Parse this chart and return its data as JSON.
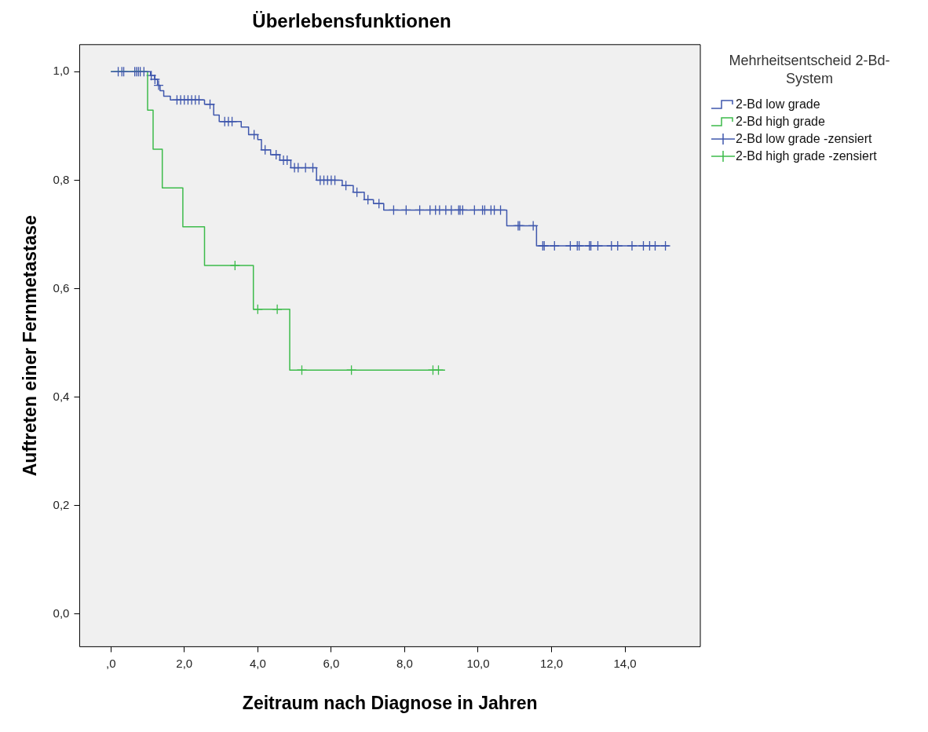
{
  "chart_data": {
    "type": "step",
    "title": "Überlebensfunktionen",
    "xlabel": "Zeitraum nach Diagnose in Jahren",
    "ylabel": "Auftreten einer Fernmetastase",
    "legend_title": "Mehrheitsentscheid 2-Bd-System",
    "legend": "top right",
    "grid": false,
    "xlim": [
      -0.85,
      16.05
    ],
    "ylim": [
      -0.06,
      1.05
    ],
    "xticks": [
      {
        "value": 0,
        "label": ",0"
      },
      {
        "value": 2,
        "label": "2,0"
      },
      {
        "value": 4,
        "label": "4,0"
      },
      {
        "value": 6,
        "label": "6,0"
      },
      {
        "value": 8,
        "label": "8,0"
      },
      {
        "value": 10,
        "label": "10,0"
      },
      {
        "value": 12,
        "label": "12,0"
      },
      {
        "value": 14,
        "label": "14,0"
      }
    ],
    "yticks": [
      {
        "value": 0,
        "label": "0,0"
      },
      {
        "value": 0.2,
        "label": "0,2"
      },
      {
        "value": 0.4,
        "label": "0,4"
      },
      {
        "value": 0.6,
        "label": "0,6"
      },
      {
        "value": 0.8,
        "label": "0,8"
      },
      {
        "value": 1,
        "label": "1,0"
      }
    ],
    "series": [
      {
        "name": "2-Bd low grade",
        "color": "#3f57ad",
        "x": [
          0,
          1.08,
          1.19,
          1.27,
          1.34,
          1.44,
          1.62,
          2.55,
          2.8,
          2.95,
          3.55,
          3.75,
          4.0,
          4.1,
          4.35,
          4.6,
          4.9,
          5.6,
          6.3,
          6.6,
          6.9,
          7.15,
          7.43,
          10.78,
          11.59,
          15.2
        ],
        "values": [
          1.0,
          0.993,
          0.986,
          0.975,
          0.965,
          0.955,
          0.948,
          0.94,
          0.92,
          0.908,
          0.898,
          0.884,
          0.875,
          0.856,
          0.847,
          0.837,
          0.823,
          0.8,
          0.79,
          0.778,
          0.764,
          0.757,
          0.745,
          0.716,
          0.679,
          0.679
        ]
      },
      {
        "name": "2-Bd high grade",
        "color": "#3dbb4b",
        "x": [
          0,
          1.0,
          1.15,
          1.4,
          1.96,
          2.55,
          3.88,
          4.87,
          9.1
        ],
        "values": [
          1.0,
          0.929,
          0.857,
          0.786,
          0.714,
          0.643,
          0.562,
          0.45,
          0.45
        ]
      },
      {
        "name": "2-Bd low grade -zensiert",
        "type": "scatter",
        "marker": "cross",
        "color": "#3f57ad",
        "x": [
          0.2,
          0.3,
          0.35,
          0.65,
          0.7,
          0.75,
          0.8,
          0.9,
          1.1,
          1.2,
          1.3,
          1.8,
          1.9,
          2.0,
          2.1,
          2.2,
          2.3,
          2.4,
          2.7,
          3.1,
          3.2,
          3.3,
          3.9,
          4.2,
          4.5,
          4.7,
          4.8,
          5.0,
          5.1,
          5.3,
          5.5,
          5.7,
          5.8,
          5.9,
          6.0,
          6.1,
          6.4,
          6.7,
          7.0,
          7.3,
          7.7,
          8.04,
          8.41,
          8.69,
          8.84,
          8.95,
          9.12,
          9.27,
          9.47,
          9.51,
          9.58,
          9.9,
          10.12,
          10.18,
          10.35,
          10.44,
          10.61,
          11.09,
          11.13,
          11.5,
          11.76,
          11.8,
          12.08,
          12.51,
          12.7,
          12.75,
          13.03,
          13.07,
          13.26,
          13.63,
          13.8,
          14.19,
          14.5,
          14.67,
          14.82,
          15.1
        ],
        "values": [
          1.0,
          1.0,
          1.0,
          1.0,
          1.0,
          1.0,
          1.0,
          1.0,
          0.993,
          0.986,
          0.975,
          0.948,
          0.948,
          0.948,
          0.948,
          0.948,
          0.948,
          0.948,
          0.94,
          0.908,
          0.908,
          0.908,
          0.884,
          0.856,
          0.847,
          0.837,
          0.837,
          0.823,
          0.823,
          0.823,
          0.823,
          0.8,
          0.8,
          0.8,
          0.8,
          0.8,
          0.79,
          0.778,
          0.764,
          0.757,
          0.745,
          0.745,
          0.745,
          0.745,
          0.745,
          0.745,
          0.745,
          0.745,
          0.745,
          0.745,
          0.745,
          0.745,
          0.745,
          0.745,
          0.745,
          0.745,
          0.745,
          0.716,
          0.716,
          0.716,
          0.679,
          0.679,
          0.679,
          0.679,
          0.679,
          0.679,
          0.679,
          0.679,
          0.679,
          0.679,
          0.679,
          0.679,
          0.679,
          0.679,
          0.679,
          0.679
        ]
      },
      {
        "name": "2-Bd high grade -zensiert",
        "type": "scatter",
        "marker": "cross",
        "color": "#3dbb4b",
        "x": [
          3.38,
          4.0,
          4.53,
          5.2,
          6.55,
          8.77,
          8.92
        ],
        "values": [
          0.643,
          0.562,
          0.562,
          0.45,
          0.45,
          0.45,
          0.45
        ]
      }
    ]
  }
}
